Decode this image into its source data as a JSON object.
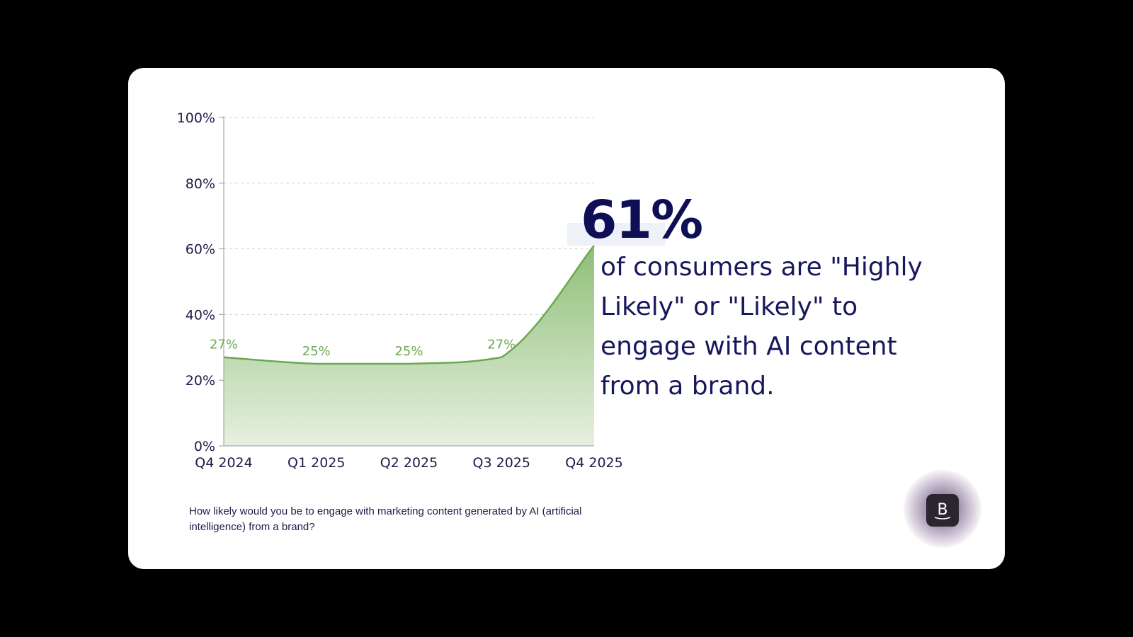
{
  "chart_data": {
    "type": "area",
    "categories": [
      "Q4 2024",
      "Q1 2025",
      "Q2 2025",
      "Q3 2025",
      "Q4 2025"
    ],
    "series": [
      {
        "values": [
          27,
          25,
          25,
          27,
          61
        ],
        "data_labels": [
          "27%",
          "25%",
          "25%",
          "27%",
          ""
        ]
      }
    ],
    "ylim": [
      0,
      100
    ],
    "yticks": [
      0,
      20,
      40,
      60,
      80,
      100
    ],
    "ytick_labels": [
      "0%",
      "20%",
      "40%",
      "60%",
      "80%",
      "100%"
    ],
    "grid": "horizontal-dashed",
    "colors": {
      "line": "#6aa84f",
      "fill_top": "#8fbf78",
      "fill_bottom": "#e6f0e0",
      "data_label": "#6aa84f",
      "axis_text": "#1c1c4a",
      "grid": "#d0d0d0"
    }
  },
  "highlight": {
    "value": "61%",
    "text": "of consumers are \"Highly Likely\" or \"Likely\" to engage with AI content from a brand."
  },
  "question": "How likely would you be to engage with marketing content generated by AI (artificial intelligence) from a brand?",
  "logo": {
    "icon": "brand-b-icon",
    "letter": "B"
  }
}
